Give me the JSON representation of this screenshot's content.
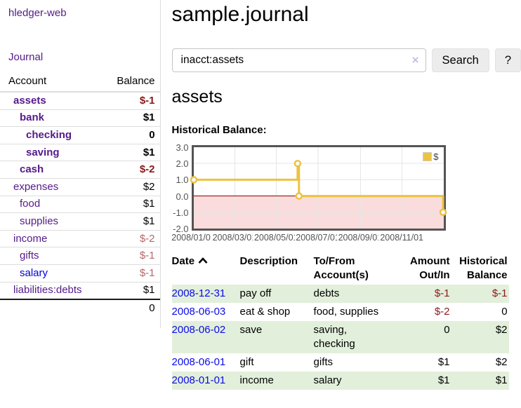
{
  "brand": "hledger-web",
  "sidebar": {
    "journal_link": "Journal",
    "accounts_table": {
      "headers": [
        "Account",
        "Balance"
      ],
      "rows": [
        {
          "name": "assets",
          "indent": 1,
          "bold": true,
          "balance": "$-1",
          "balance_style": "neg-bold"
        },
        {
          "name": "bank",
          "indent": 2,
          "bold": true,
          "balance": "$1",
          "balance_style": "pos-bold"
        },
        {
          "name": "checking",
          "indent": 3,
          "bold": true,
          "balance": "0",
          "balance_style": "pos-bold"
        },
        {
          "name": "saving",
          "indent": 3,
          "bold": true,
          "balance": "$1",
          "balance_style": "pos-bold"
        },
        {
          "name": "cash",
          "indent": 2,
          "bold": true,
          "balance": "$-2",
          "balance_style": "neg-bold"
        },
        {
          "name": "expenses",
          "indent": 1,
          "bold": false,
          "balance": "$2",
          "balance_style": "pos"
        },
        {
          "name": "food",
          "indent": 2,
          "bold": false,
          "balance": "$1",
          "balance_style": "pos"
        },
        {
          "name": "supplies",
          "indent": 2,
          "bold": false,
          "balance": "$1",
          "balance_style": "pos"
        },
        {
          "name": "income",
          "indent": 1,
          "bold": false,
          "balance": "$-2",
          "balance_style": "neg-light"
        },
        {
          "name": "gifts",
          "indent": 2,
          "bold": false,
          "balance": "$-1",
          "balance_style": "neg-light"
        },
        {
          "name": "salary",
          "indent": 2,
          "bold": false,
          "link_color": "blue",
          "balance": "$-1",
          "balance_style": "neg-light"
        },
        {
          "name": "liabilities:debts",
          "indent": 1,
          "bold": false,
          "balance": "$1",
          "balance_style": "pos"
        }
      ],
      "total": "0"
    }
  },
  "header": {
    "title": "sample.journal"
  },
  "search": {
    "value": "inacct:assets",
    "clear_icon": "×",
    "button": "Search",
    "help_button": "?"
  },
  "account_page": {
    "heading": "assets",
    "chart_label": "Historical Balance:"
  },
  "chart_data": {
    "type": "line",
    "title": "Historical Balance:",
    "step": true,
    "series": [
      {
        "name": "$",
        "color": "#edc240",
        "points": [
          [
            "2008-01-01",
            1
          ],
          [
            "2008-06-01",
            2
          ],
          [
            "2008-06-03",
            0
          ],
          [
            "2008-12-31",
            -1
          ]
        ]
      }
    ],
    "x_domain": [
      "2008-01-01",
      "2009-01-01"
    ],
    "ylim": [
      -2,
      3
    ],
    "yticks": [
      "3.0",
      "2.0",
      "1.0",
      "0.0",
      "-1.0",
      "-2.0"
    ],
    "xticks": [
      "2008/01/01",
      "2008/03/01",
      "2008/05/01",
      "2008/07/01",
      "2008/09/01",
      "2008/11/01"
    ],
    "grid_color": "#e6e6e6",
    "negative_region_color": "#fadcdc",
    "zero_line_color": "#8b0000",
    "legend_position": "top-right"
  },
  "register_table": {
    "columns": [
      "Date",
      "Description",
      "To/From Account(s)",
      "Amount Out/In",
      "Historical Balance"
    ],
    "sort": "ascending",
    "rows": [
      {
        "date": "2008-12-31",
        "description": "pay off",
        "accounts": "debts",
        "amount": "$-1",
        "amount_neg": true,
        "balance": "$-1",
        "balance_neg": true
      },
      {
        "date": "2008-06-03",
        "description": "eat & shop",
        "accounts": "food, supplies",
        "amount": "$-2",
        "amount_neg": true,
        "balance": "0",
        "balance_neg": false
      },
      {
        "date": "2008-06-02",
        "description": "save",
        "accounts": "saving,\nchecking",
        "amount": "0",
        "amount_neg": false,
        "balance": "$2",
        "balance_neg": false
      },
      {
        "date": "2008-06-01",
        "description": "gift",
        "accounts": "gifts",
        "amount": "$1",
        "amount_neg": false,
        "balance": "$2",
        "balance_neg": false
      },
      {
        "date": "2008-01-01",
        "description": "income",
        "accounts": "salary",
        "amount": "$1",
        "amount_neg": false,
        "balance": "$1",
        "balance_neg": false
      }
    ]
  }
}
